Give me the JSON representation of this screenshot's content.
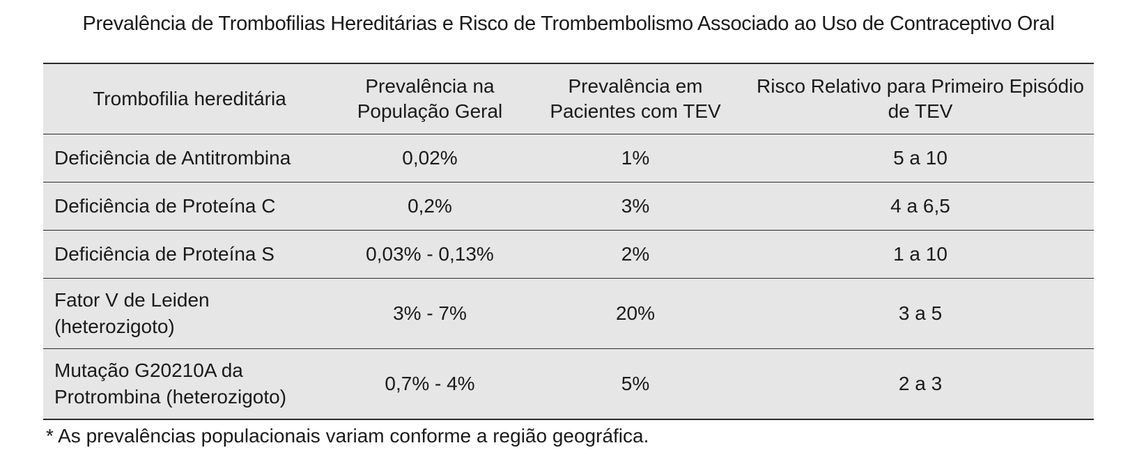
{
  "title": "Prevalência de Trombofilias Hereditárias e Risco de Trombembolismo Associado ao Uso de Contraceptivo Oral",
  "table": {
    "headers": [
      "Trombofilia hereditária",
      "Prevalência na População Geral",
      "Prevalência em Pacientes com TEV",
      "Risco Relativo para Primeiro Episódio de TEV"
    ],
    "rows": [
      [
        "Deficiência de Antitrombina",
        "0,02%",
        "1%",
        "5 a 10"
      ],
      [
        "Deficiência de Proteína C",
        "0,2%",
        "3%",
        "4 a 6,5"
      ],
      [
        "Deficiência de Proteína S",
        "0,03% - 0,13%",
        "2%",
        "1 a 10"
      ],
      [
        "Fator V de Leiden (heterozigoto)",
        "3% - 7%",
        "20%",
        "3 a 5"
      ],
      [
        "Mutação G20210A da Protrombina (heterozigoto)",
        "0,7% - 4%",
        "5%",
        "2 a 3"
      ]
    ]
  },
  "footnote": "* As prevalências populacionais variam conforme a região geográfica."
}
